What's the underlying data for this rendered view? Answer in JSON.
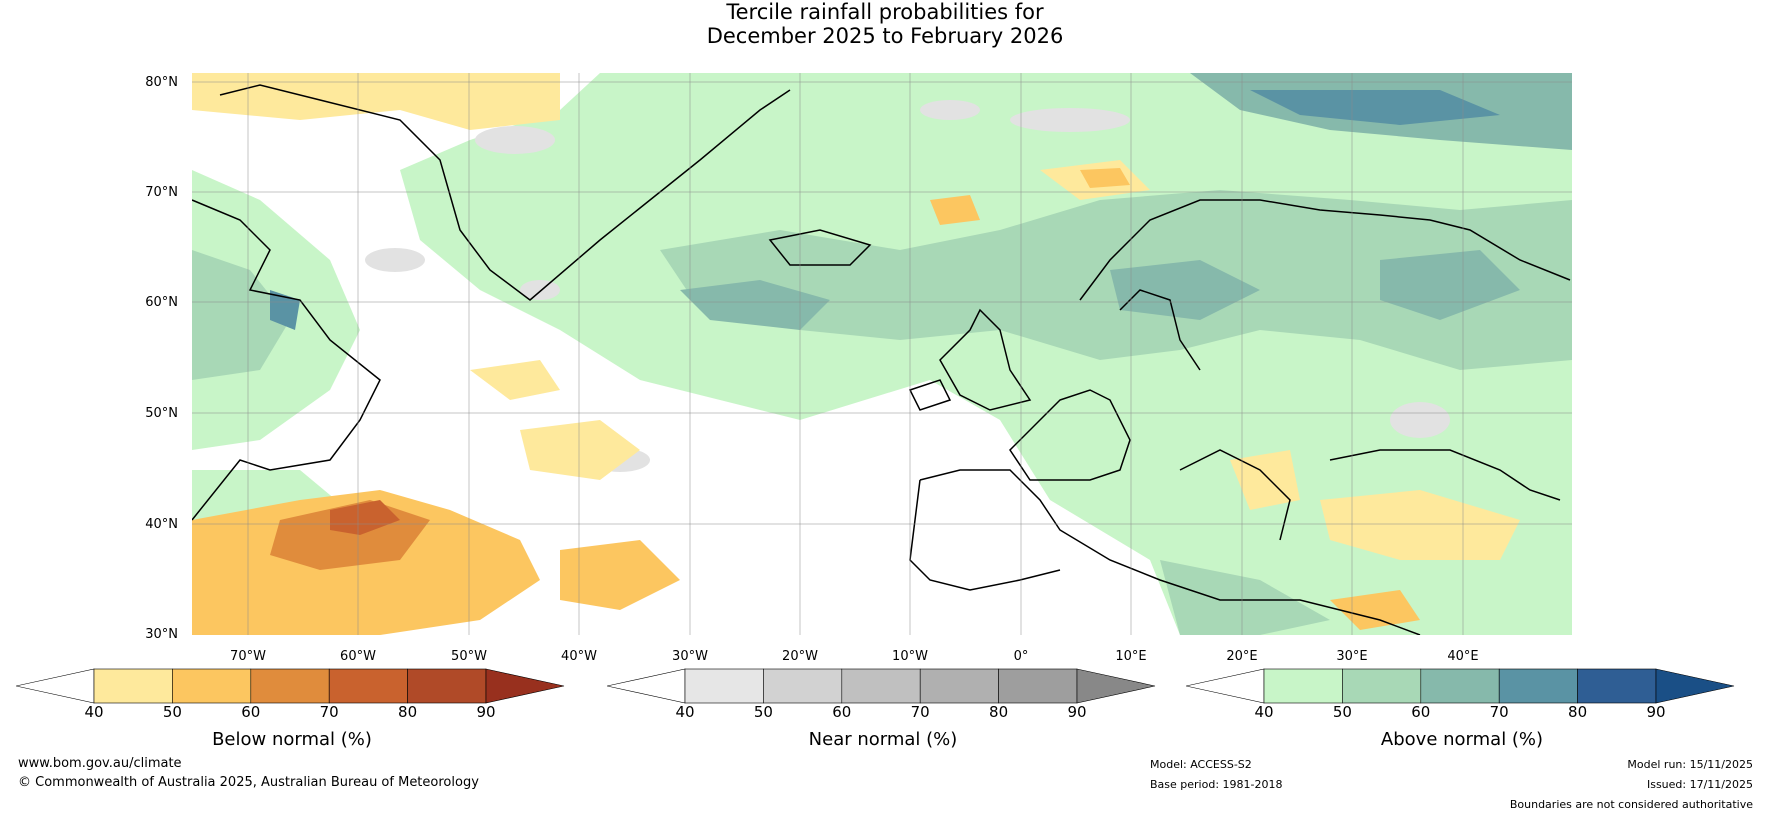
{
  "title_line1": "Tercile rainfall probabilities for",
  "title_line2": "December 2025 to February 2026",
  "lat_labels": [
    "80°N",
    "70°N",
    "60°N",
    "50°N",
    "40°N",
    "30°N"
  ],
  "lon_labels": [
    "70°W",
    "60°W",
    "50°W",
    "40°W",
    "30°W",
    "20°W",
    "10°W",
    "0°",
    "10°E",
    "20°E",
    "30°E",
    "40°E"
  ],
  "colorbars": [
    {
      "title": "Below normal (%)",
      "ticks": [
        "40",
        "50",
        "60",
        "70",
        "80",
        "90"
      ],
      "colors": [
        "#ffffff",
        "#fee99c",
        "#fcc660",
        "#e08c3c",
        "#c9622e",
        "#b04a28",
        "#98301e"
      ]
    },
    {
      "title": "Near normal (%)",
      "ticks": [
        "40",
        "50",
        "60",
        "70",
        "80",
        "90"
      ],
      "colors": [
        "#ffffff",
        "#e6e6e6",
        "#d2d2d2",
        "#c0c0c0",
        "#b0b0b0",
        "#9e9e9e",
        "#888888"
      ]
    },
    {
      "title": "Above normal (%)",
      "ticks": [
        "40",
        "50",
        "60",
        "70",
        "80",
        "90"
      ],
      "colors": [
        "#ffffff",
        "#c8f5c8",
        "#a8d8b6",
        "#86b9ab",
        "#5a93a4",
        "#2f5e94",
        "#1a4f86"
      ]
    }
  ],
  "footer": {
    "url": "www.bom.gov.au/climate",
    "copyright": "© Commonwealth of Australia 2025, Australian Bureau of Meteorology",
    "model": "Model: ACCESS-S2",
    "base_period": "Base period: 1981-2018",
    "model_run": "Model run: 15/11/2025",
    "issued": "Issued: 17/11/2025",
    "disclaimer": "Boundaries are not considered authoritative"
  }
}
